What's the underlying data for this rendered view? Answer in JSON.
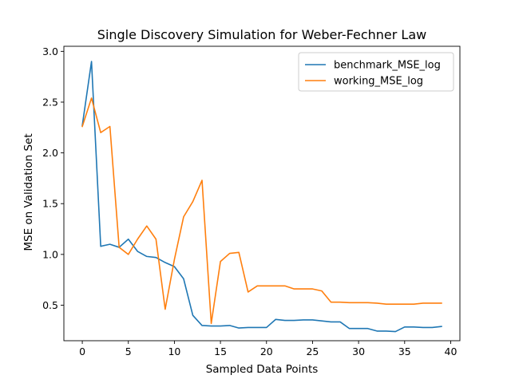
{
  "chart_data": {
    "type": "line",
    "title": "Single Discovery Simulation for Weber-Fechner Law",
    "xlabel": "Sampled Data Points",
    "ylabel": "MSE on Validation Set",
    "xlim": [
      -2,
      41
    ],
    "ylim": [
      0.15,
      3.05
    ],
    "xticks": [
      0,
      5,
      10,
      15,
      20,
      25,
      30,
      35,
      40
    ],
    "yticks": [
      0.5,
      1.0,
      1.5,
      2.0,
      2.5,
      3.0
    ],
    "xtick_labels": [
      "0",
      "5",
      "10",
      "15",
      "20",
      "25",
      "30",
      "35",
      "40"
    ],
    "ytick_labels": [
      "0.5",
      "1.0",
      "1.5",
      "2.0",
      "2.5",
      "3.0"
    ],
    "grid": false,
    "legend_position": "top-right",
    "x": [
      0,
      1,
      2,
      3,
      4,
      5,
      6,
      7,
      8,
      9,
      10,
      11,
      12,
      13,
      14,
      15,
      16,
      17,
      18,
      19,
      20,
      21,
      22,
      23,
      24,
      25,
      26,
      27,
      28,
      29,
      30,
      31,
      32,
      33,
      34,
      35,
      36,
      37,
      38,
      39
    ],
    "series": [
      {
        "name": "benchmark_MSE_log",
        "color": "#1f77b4",
        "values": [
          2.27,
          2.9,
          1.08,
          1.1,
          1.07,
          1.15,
          1.03,
          0.98,
          0.97,
          0.92,
          0.88,
          0.76,
          0.4,
          0.3,
          0.295,
          0.295,
          0.3,
          0.275,
          0.28,
          0.28,
          0.28,
          0.36,
          0.35,
          0.35,
          0.355,
          0.355,
          0.345,
          0.335,
          0.335,
          0.27,
          0.27,
          0.27,
          0.245,
          0.245,
          0.24,
          0.285,
          0.285,
          0.28,
          0.28,
          0.29
        ]
      },
      {
        "name": "working_MSE_log",
        "color": "#ff7f0e",
        "values": [
          2.26,
          2.54,
          2.2,
          2.26,
          1.07,
          1.0,
          1.15,
          1.28,
          1.15,
          0.46,
          0.95,
          1.37,
          1.52,
          1.73,
          0.32,
          0.93,
          1.01,
          1.02,
          0.63,
          0.69,
          0.69,
          0.69,
          0.69,
          0.66,
          0.66,
          0.66,
          0.64,
          0.53,
          0.53,
          0.525,
          0.525,
          0.525,
          0.52,
          0.51,
          0.51,
          0.51,
          0.51,
          0.52,
          0.52,
          0.52
        ]
      }
    ]
  }
}
